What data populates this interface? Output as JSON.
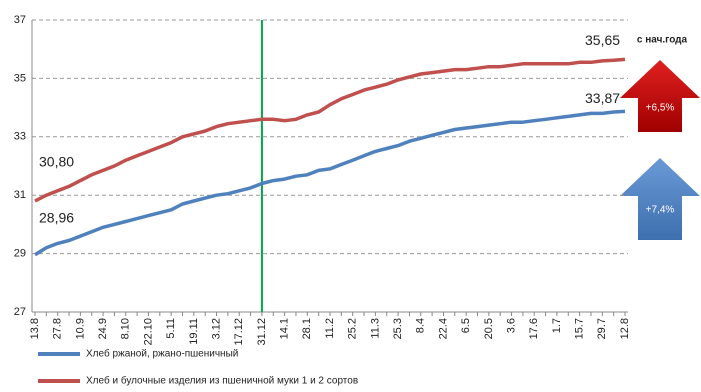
{
  "chart_data": {
    "type": "line",
    "categories": [
      "13.8",
      null,
      "27.8",
      null,
      "10.9",
      null,
      "24.9",
      null,
      "8.10",
      null,
      "22.10",
      null,
      "5.11",
      null,
      "19.11",
      null,
      "3.12",
      null,
      "17.12",
      null,
      "31.12",
      null,
      "14.1",
      null,
      "28.1",
      null,
      "11.2",
      null,
      "25.2",
      null,
      "11.3",
      null,
      "25.3",
      null,
      "8.4",
      null,
      "22.4",
      null,
      "6.5",
      null,
      "20.5",
      null,
      "3.6",
      null,
      "17.6",
      null,
      "1.7",
      null,
      "15.7",
      null,
      "29.7",
      null,
      "12.8"
    ],
    "series": [
      {
        "name": "Хлеб ржаной, ржано-пшеничный",
        "color": "#4f81bd",
        "values": [
          28.96,
          29.2,
          29.35,
          29.45,
          29.6,
          29.75,
          29.9,
          30.0,
          30.1,
          30.2,
          30.3,
          30.4,
          30.5,
          30.7,
          30.8,
          30.9,
          31.0,
          31.05,
          31.15,
          31.25,
          31.4,
          31.5,
          31.55,
          31.65,
          31.7,
          31.85,
          31.9,
          32.05,
          32.2,
          32.35,
          32.5,
          32.6,
          32.7,
          32.85,
          32.95,
          33.05,
          33.15,
          33.25,
          33.3,
          33.35,
          33.4,
          33.45,
          33.5,
          33.5,
          33.55,
          33.6,
          33.65,
          33.7,
          33.75,
          33.8,
          33.8,
          33.85,
          33.87
        ],
        "value_labels": [
          "28,96",
          null,
          null,
          null,
          null,
          null,
          null,
          null,
          null,
          null,
          null,
          null,
          null,
          null,
          null,
          null,
          null,
          null,
          null,
          null,
          null,
          null,
          null,
          null,
          null,
          null,
          null,
          null,
          null,
          null,
          null,
          null,
          null,
          null,
          null,
          null,
          null,
          null,
          null,
          null,
          null,
          null,
          null,
          null,
          null,
          null,
          null,
          null,
          null,
          null,
          null,
          null,
          "33,87"
        ]
      },
      {
        "name": "Хлеб и булочные изделия из пшеничной муки 1 и 2 сортов",
        "color": "#c0504d",
        "values": [
          30.8,
          31.0,
          31.15,
          31.3,
          31.5,
          31.7,
          31.85,
          32.0,
          32.2,
          32.35,
          32.5,
          32.65,
          32.8,
          33.0,
          33.1,
          33.2,
          33.35,
          33.45,
          33.5,
          33.55,
          33.6,
          33.6,
          33.55,
          33.6,
          33.75,
          33.85,
          34.1,
          34.3,
          34.45,
          34.6,
          34.7,
          34.8,
          34.95,
          35.05,
          35.15,
          35.2,
          35.25,
          35.3,
          35.3,
          35.35,
          35.4,
          35.4,
          35.45,
          35.5,
          35.5,
          35.5,
          35.5,
          35.5,
          35.55,
          35.55,
          35.6,
          35.62,
          35.65
        ],
        "value_labels": [
          "30,80",
          null,
          null,
          null,
          null,
          null,
          null,
          null,
          null,
          null,
          null,
          null,
          null,
          null,
          null,
          null,
          null,
          null,
          null,
          null,
          null,
          null,
          null,
          null,
          null,
          null,
          null,
          null,
          null,
          null,
          null,
          null,
          null,
          null,
          null,
          null,
          null,
          null,
          null,
          null,
          null,
          null,
          null,
          null,
          null,
          null,
          null,
          null,
          null,
          null,
          null,
          null,
          "35,65"
        ]
      }
    ],
    "ylim": [
      27,
      37
    ],
    "yticks": [
      27,
      29,
      31,
      33,
      35,
      37
    ],
    "grid": true,
    "vline": {
      "category": "31.12",
      "color": "#00a650"
    },
    "annotations": {
      "header": "с нач.года",
      "red_arrow": "+6,5%",
      "blue_arrow": "+7,4%"
    }
  }
}
